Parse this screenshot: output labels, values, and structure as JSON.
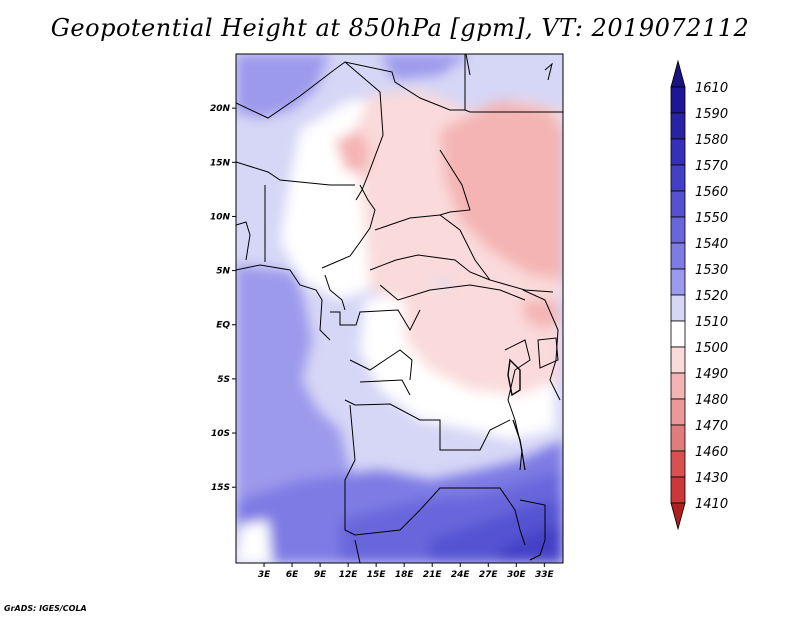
{
  "title": "Geopotential Height at 850hPa [gpm], VT: 2019072112",
  "credit": "GrADS: IGES/COLA",
  "map": {
    "lon_range": [
      0,
      35
    ],
    "lat_range": [
      -22,
      25
    ],
    "lat_ticks": [
      {
        "value": 20,
        "label": "20N"
      },
      {
        "value": 15,
        "label": "15N"
      },
      {
        "value": 10,
        "label": "10N"
      },
      {
        "value": 5,
        "label": "5N"
      },
      {
        "value": 0,
        "label": "EQ"
      },
      {
        "value": -5,
        "label": "5S"
      },
      {
        "value": -10,
        "label": "10S"
      },
      {
        "value": -15,
        "label": "15S"
      }
    ],
    "lon_ticks": [
      {
        "value": 3,
        "label": "3E"
      },
      {
        "value": 6,
        "label": "6E"
      },
      {
        "value": 9,
        "label": "9E"
      },
      {
        "value": 12,
        "label": "12E"
      },
      {
        "value": 15,
        "label": "15E"
      },
      {
        "value": 18,
        "label": "18E"
      },
      {
        "value": 21,
        "label": "21E"
      },
      {
        "value": 24,
        "label": "24E"
      },
      {
        "value": 27,
        "label": "27E"
      },
      {
        "value": 30,
        "label": "30E"
      },
      {
        "value": 33,
        "label": "33E"
      }
    ]
  },
  "colorbar": {
    "levels": [
      {
        "label": "1610",
        "color": "#1e1696"
      },
      {
        "label": "1590",
        "color": "#2a22a6"
      },
      {
        "label": "1580",
        "color": "#3630b8"
      },
      {
        "label": "1570",
        "color": "#4440c6"
      },
      {
        "label": "1560",
        "color": "#5552d2"
      },
      {
        "label": "1550",
        "color": "#6966dc"
      },
      {
        "label": "1540",
        "color": "#7e7ce4"
      },
      {
        "label": "1530",
        "color": "#9c9aec"
      },
      {
        "label": "1520",
        "color": "#d6d6f6"
      },
      {
        "label": "1510",
        "color": "#ffffff"
      },
      {
        "label": "1500",
        "color": "#fadada"
      },
      {
        "label": "1490",
        "color": "#f4b4b4"
      },
      {
        "label": "1480",
        "color": "#ec9898"
      },
      {
        "label": "1470",
        "color": "#e27c7c"
      },
      {
        "label": "1460",
        "color": "#d85050"
      },
      {
        "label": "1430",
        "color": "#cc3838"
      },
      {
        "label": "1410",
        "color": "#bc2626"
      }
    ],
    "top_arrow_color": "#1a1480",
    "bottom_arrow_color": "#b01e1e"
  }
}
